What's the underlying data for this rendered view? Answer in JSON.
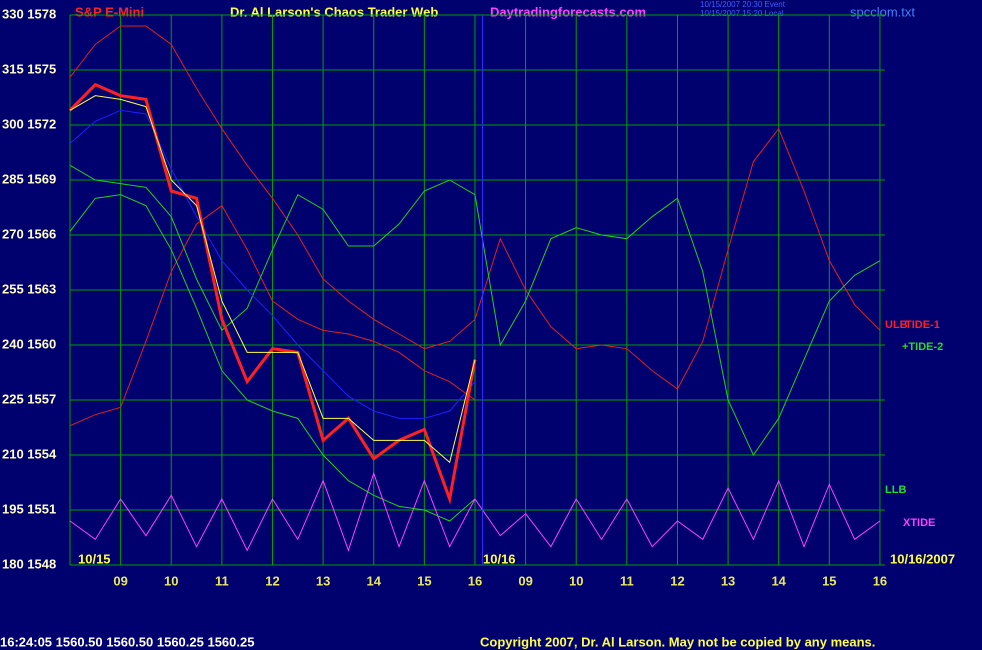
{
  "chart_data": {
    "type": "line",
    "instrument": "S&P E-Mini",
    "title": "Dr. Al Larson's Chaos Trader Web",
    "website": "Daytradingforecasts.com",
    "file": "spcclom.txt",
    "timestamps": [
      "10/15/2007 20:30 Event",
      "10/15/2007 15:20 Local"
    ],
    "quote": "16:24:05 1560.50 1560.50 1560.25 1560.25",
    "copyright": "Copyright 2007, Dr. Al Larson. May not be copied by any means.",
    "date_labels": [
      "10/15",
      "10/16",
      "10/16/2007"
    ],
    "line_labels": [
      {
        "text": "ULB",
        "color": "#ff2020"
      },
      {
        "text": "TIDE-1",
        "color": "#ff2020"
      },
      {
        "text": "+TIDE-2",
        "color": "#20e020"
      },
      {
        "text": "LLB",
        "color": "#20e020"
      },
      {
        "text": "XTIDE",
        "color": "#ff40ff"
      }
    ],
    "grid": true,
    "grid_color": "#00a000",
    "background": "#00006e",
    "now_x": 16.15,
    "now_color": "#3030ff",
    "xlim": [
      8,
      24.1
    ],
    "ylim": [
      180,
      330
    ],
    "xticks": [
      {
        "value": 9,
        "label": "09"
      },
      10,
      11,
      12,
      13,
      14,
      15,
      16,
      {
        "value": 17,
        "label": "09"
      },
      {
        "value": 18,
        "label": "10"
      },
      {
        "value": 19,
        "label": "11"
      },
      {
        "value": 20,
        "label": "12"
      },
      {
        "value": 21,
        "label": "13"
      },
      {
        "value": 22,
        "label": "14"
      },
      {
        "value": 23,
        "label": "15"
      },
      {
        "value": 24,
        "label": "16"
      }
    ],
    "yticks": [
      {
        "value": 180,
        "label": "180 1548"
      },
      {
        "value": 195,
        "label": "195 1551"
      },
      {
        "value": 210,
        "label": "210 1554"
      },
      {
        "value": 225,
        "label": "225 1557"
      },
      {
        "value": 240,
        "label": "240 1560"
      },
      {
        "value": 255,
        "label": "255 1563"
      },
      {
        "value": 270,
        "label": "270 1566"
      },
      {
        "value": 285,
        "label": "285 1569"
      },
      {
        "value": 300,
        "label": "300 1572"
      },
      {
        "value": 315,
        "label": "315 1575"
      },
      {
        "value": 330,
        "label": "330 1578"
      }
    ],
    "x": [
      8,
      8.5,
      9,
      9.5,
      10,
      10.5,
      11,
      11.5,
      12,
      12.5,
      13,
      13.5,
      14,
      14.5,
      15,
      15.5,
      16,
      16.5,
      17,
      17.5,
      18,
      18.5,
      19,
      19.5,
      20,
      20.5,
      21,
      21.5,
      22,
      22.5,
      23,
      23.5,
      24
    ],
    "series": [
      {
        "color": "#e02020",
        "values": [
          313,
          322,
          327,
          327,
          322,
          310,
          299,
          289,
          280,
          270,
          258,
          252,
          247,
          243,
          239,
          241,
          247,
          269,
          255,
          245,
          239,
          240,
          239,
          233,
          228,
          241,
          266,
          290,
          299,
          282,
          263,
          251,
          244
        ]
      },
      {
        "color": "#e02020",
        "values": [
          218,
          221,
          223,
          241,
          260,
          273,
          278,
          266,
          252,
          247,
          244,
          243,
          241,
          238,
          233,
          230,
          225,
          null,
          null,
          null,
          null,
          null,
          null,
          null,
          null,
          null,
          null,
          null,
          null,
          null,
          null,
          null,
          null
        ]
      },
      {
        "color": "#20d020",
        "values": [
          289,
          285,
          284,
          283,
          275,
          258,
          244,
          250,
          266,
          281,
          277,
          267,
          267,
          273,
          282,
          285,
          281,
          240,
          252,
          269,
          272,
          270,
          269,
          275,
          280,
          260,
          225,
          210,
          220,
          236,
          252,
          259,
          263
        ]
      },
      {
        "color": "#20d020",
        "values": [
          271,
          280,
          281,
          278,
          266,
          250,
          233,
          225,
          222,
          220,
          210,
          203,
          199,
          196,
          195,
          192,
          198,
          null,
          null,
          null,
          null,
          null,
          null,
          null,
          null,
          null,
          null,
          null,
          null,
          null,
          null,
          null,
          null
        ]
      },
      {
        "color": "#2020ff",
        "values": [
          295,
          301,
          304,
          303,
          288,
          275,
          263,
          255,
          248,
          240,
          233,
          226,
          222,
          220,
          220,
          222,
          230,
          null,
          null,
          null,
          null,
          null,
          null,
          null,
          null,
          null,
          null,
          null,
          null,
          null,
          null,
          null,
          null
        ]
      },
      {
        "color": "#ff2020",
        "width": 3,
        "values": [
          304,
          311,
          308,
          307,
          282,
          280,
          247,
          230,
          239,
          238,
          214,
          220,
          209,
          214,
          217,
          198,
          236,
          null,
          null,
          null,
          null,
          null,
          null,
          null,
          null,
          null,
          null,
          null,
          null,
          null,
          null,
          null,
          null
        ]
      },
      {
        "color": "#ffff40",
        "values": [
          304,
          308,
          307,
          305,
          285,
          278,
          252,
          238,
          238,
          238,
          220,
          220,
          214,
          214,
          214,
          208,
          236,
          null,
          null,
          null,
          null,
          null,
          null,
          null,
          null,
          null,
          null,
          null,
          null,
          null,
          null,
          null,
          null
        ]
      },
      {
        "color": "#ff40ff",
        "values": [
          192,
          187,
          198,
          188,
          199,
          185,
          198,
          184,
          198,
          187,
          203,
          184,
          205,
          185,
          203,
          185,
          198,
          188,
          194,
          185,
          198,
          187,
          198,
          185,
          192,
          187,
          201,
          187,
          203,
          185,
          202,
          187,
          192
        ]
      }
    ]
  }
}
